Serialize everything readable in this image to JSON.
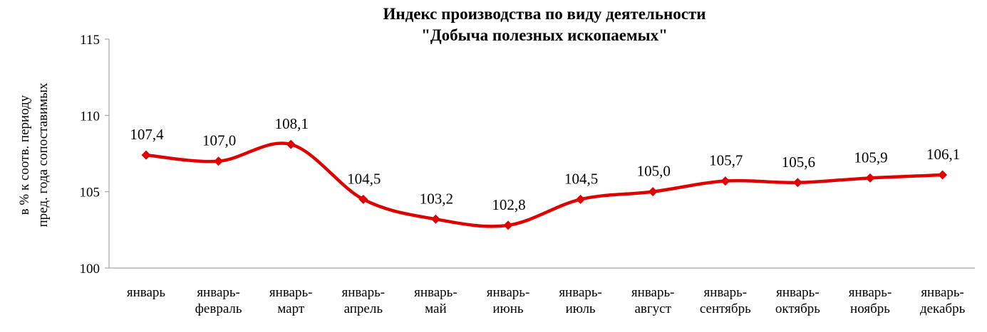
{
  "chart_data": {
    "type": "line",
    "title": [
      "Индекс  производства по виду деятельности",
      "\"Добыча полезных ископаемых\""
    ],
    "ylabel": [
      "в % к соотв. периоду",
      "пред. года сопоставимых"
    ],
    "ylim": [
      100,
      115
    ],
    "yticks": [
      100,
      105,
      110,
      115
    ],
    "categories": [
      [
        "январь"
      ],
      [
        "январь-",
        "февраль"
      ],
      [
        "январь-",
        "март"
      ],
      [
        "январь-",
        "апрель"
      ],
      [
        "январь-",
        "май"
      ],
      [
        "январь-",
        "июнь"
      ],
      [
        "январь-",
        "июль"
      ],
      [
        "январь-",
        "август"
      ],
      [
        "январь-",
        "сентябрь"
      ],
      [
        "январь-",
        "октябрь"
      ],
      [
        "январь-",
        "ноябрь"
      ],
      [
        "январь-",
        "декабрь"
      ]
    ],
    "values": [
      107.4,
      107.0,
      108.1,
      104.5,
      103.2,
      102.8,
      104.5,
      105.0,
      105.7,
      105.6,
      105.9,
      106.1
    ],
    "data_labels": [
      "107,4",
      "107,0",
      "108,1",
      "104,5",
      "103,2",
      "102,8",
      "104,5",
      "105,0",
      "105,7",
      "105,6",
      "105,9",
      "106,1"
    ],
    "series_color": "#e00000",
    "marker": "diamond",
    "smooth": true,
    "grid": false,
    "legend": "none"
  }
}
